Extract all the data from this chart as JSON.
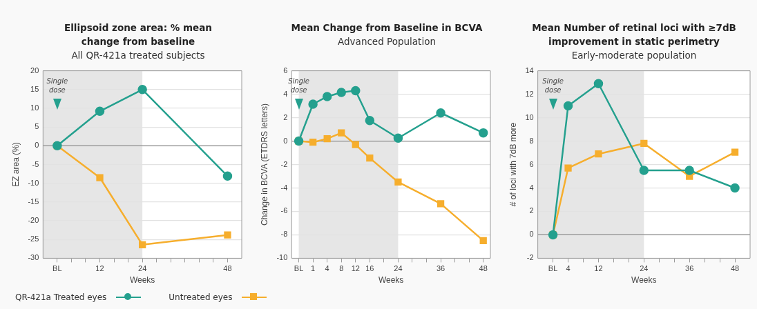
{
  "chart_data": [
    {
      "type": "line",
      "title": "Ellipsoid zone area: % mean change from baseline",
      "subtitle": "All QR-421a treated subjects",
      "xlabel": "Weeks",
      "ylabel": "EZ area (%)",
      "x": [
        0,
        12,
        24,
        48
      ],
      "series": [
        {
          "name": "QR-421a Treated eyes",
          "color": "#24a08e",
          "marker": "circle",
          "values": [
            0,
            9.2,
            15,
            -8.1
          ]
        },
        {
          "name": "Untreated eyes",
          "color": "#f6ae2d",
          "marker": "square",
          "values": [
            0,
            -8.5,
            -26.4,
            -23.8
          ]
        }
      ],
      "xlim": [
        -4,
        52
      ],
      "xticks": [
        {
          "value": 0,
          "label": "BL"
        },
        {
          "value": 4,
          "label": null
        },
        {
          "value": 8,
          "label": null
        },
        12,
        {
          "value": 16,
          "label": null
        },
        {
          "value": 20,
          "label": null
        },
        24,
        {
          "value": 28,
          "label": null
        },
        {
          "value": 32,
          "label": null
        },
        {
          "value": 36,
          "label": null
        },
        {
          "value": 40,
          "label": null
        },
        {
          "value": 44,
          "label": null
        },
        48
      ],
      "ylim": [
        -30,
        20
      ],
      "yticks": [
        -30,
        -25,
        -20,
        -15,
        -10,
        -5,
        0,
        5,
        10,
        15,
        20
      ],
      "grid": "y",
      "legend": "bottom left",
      "bands": [
        {
          "axis": "x",
          "from": -4,
          "to": 24,
          "color": "#e6e6e6"
        }
      ],
      "ref_lines": [
        {
          "axis": "y",
          "value": 0,
          "color": "#8c8c8c"
        }
      ],
      "annotations": [
        "Single dose"
      ]
    },
    {
      "type": "line",
      "title": "Mean Change from Baseline in BCVA",
      "subtitle": "Advanced Population",
      "xlabel": "Weeks",
      "ylabel": "Change in BCVA (ETDRS letters)",
      "categories": [
        "BL",
        "1",
        "4",
        "8",
        "12",
        "16",
        null,
        "24",
        null,
        null,
        "36",
        null,
        null,
        "48"
      ],
      "series": [
        {
          "color": "#24a08e",
          "marker": "circle",
          "values": [
            0,
            3.15,
            3.8,
            4.15,
            4.3,
            1.75,
            null,
            0.25,
            null,
            null,
            2.4,
            null,
            null,
            0.7
          ]
        },
        {
          "color": "#f6ae2d",
          "marker": "square",
          "values": [
            0,
            -0.1,
            0.2,
            0.7,
            -0.3,
            -1.45,
            null,
            -3.5,
            null,
            null,
            -5.35,
            null,
            null,
            -8.5
          ]
        }
      ],
      "ylim": [
        -10,
        6
      ],
      "yticks": [
        -10,
        -8,
        -6,
        -4,
        -2,
        0,
        2,
        4,
        6
      ],
      "grid": "y",
      "bands": [
        {
          "axis": "x",
          "from": "BL",
          "to": "24",
          "color": "#e6e6e6"
        }
      ],
      "ref_lines": [
        {
          "axis": "y",
          "value": 0,
          "color": "#8c8c8c"
        }
      ],
      "annotations": [
        "Single dose"
      ]
    },
    {
      "type": "line",
      "title": "Mean Number of retinal loci with ≥7dB improvement in static perimetry",
      "subtitle": "Early-moderate population",
      "xlabel": "Weeks",
      "ylabel": "# of loci with 7dB more",
      "x": [
        0,
        4,
        12,
        24,
        36,
        48
      ],
      "series": [
        {
          "color": "#24a08e",
          "marker": "circle",
          "values": [
            0,
            11,
            12.9,
            5.5,
            5.5,
            4
          ]
        },
        {
          "color": "#f6ae2d",
          "marker": "square",
          "values": [
            0,
            5.7,
            6.9,
            7.8,
            5,
            7.05
          ]
        }
      ],
      "xlim": [
        -4,
        52
      ],
      "xticks": [
        {
          "value": 0,
          "label": "BL"
        },
        4,
        {
          "value": 8,
          "label": null
        },
        12,
        {
          "value": 16,
          "label": null
        },
        {
          "value": 20,
          "label": null
        },
        24,
        {
          "value": 28,
          "label": null
        },
        {
          "value": 32,
          "label": null
        },
        36,
        {
          "value": 40,
          "label": null
        },
        {
          "value": 44,
          "label": null
        },
        48
      ],
      "ylim": [
        -2,
        14
      ],
      "yticks": [
        -2,
        0,
        2,
        4,
        6,
        8,
        10,
        12,
        14
      ],
      "grid": "y",
      "bands": [
        {
          "axis": "x",
          "from": -4,
          "to": 24,
          "color": "#e6e6e6"
        }
      ],
      "ref_lines": [
        {
          "axis": "y",
          "value": 0,
          "color": "#8c8c8c"
        }
      ],
      "annotations": [
        "Single dose"
      ]
    }
  ]
}
